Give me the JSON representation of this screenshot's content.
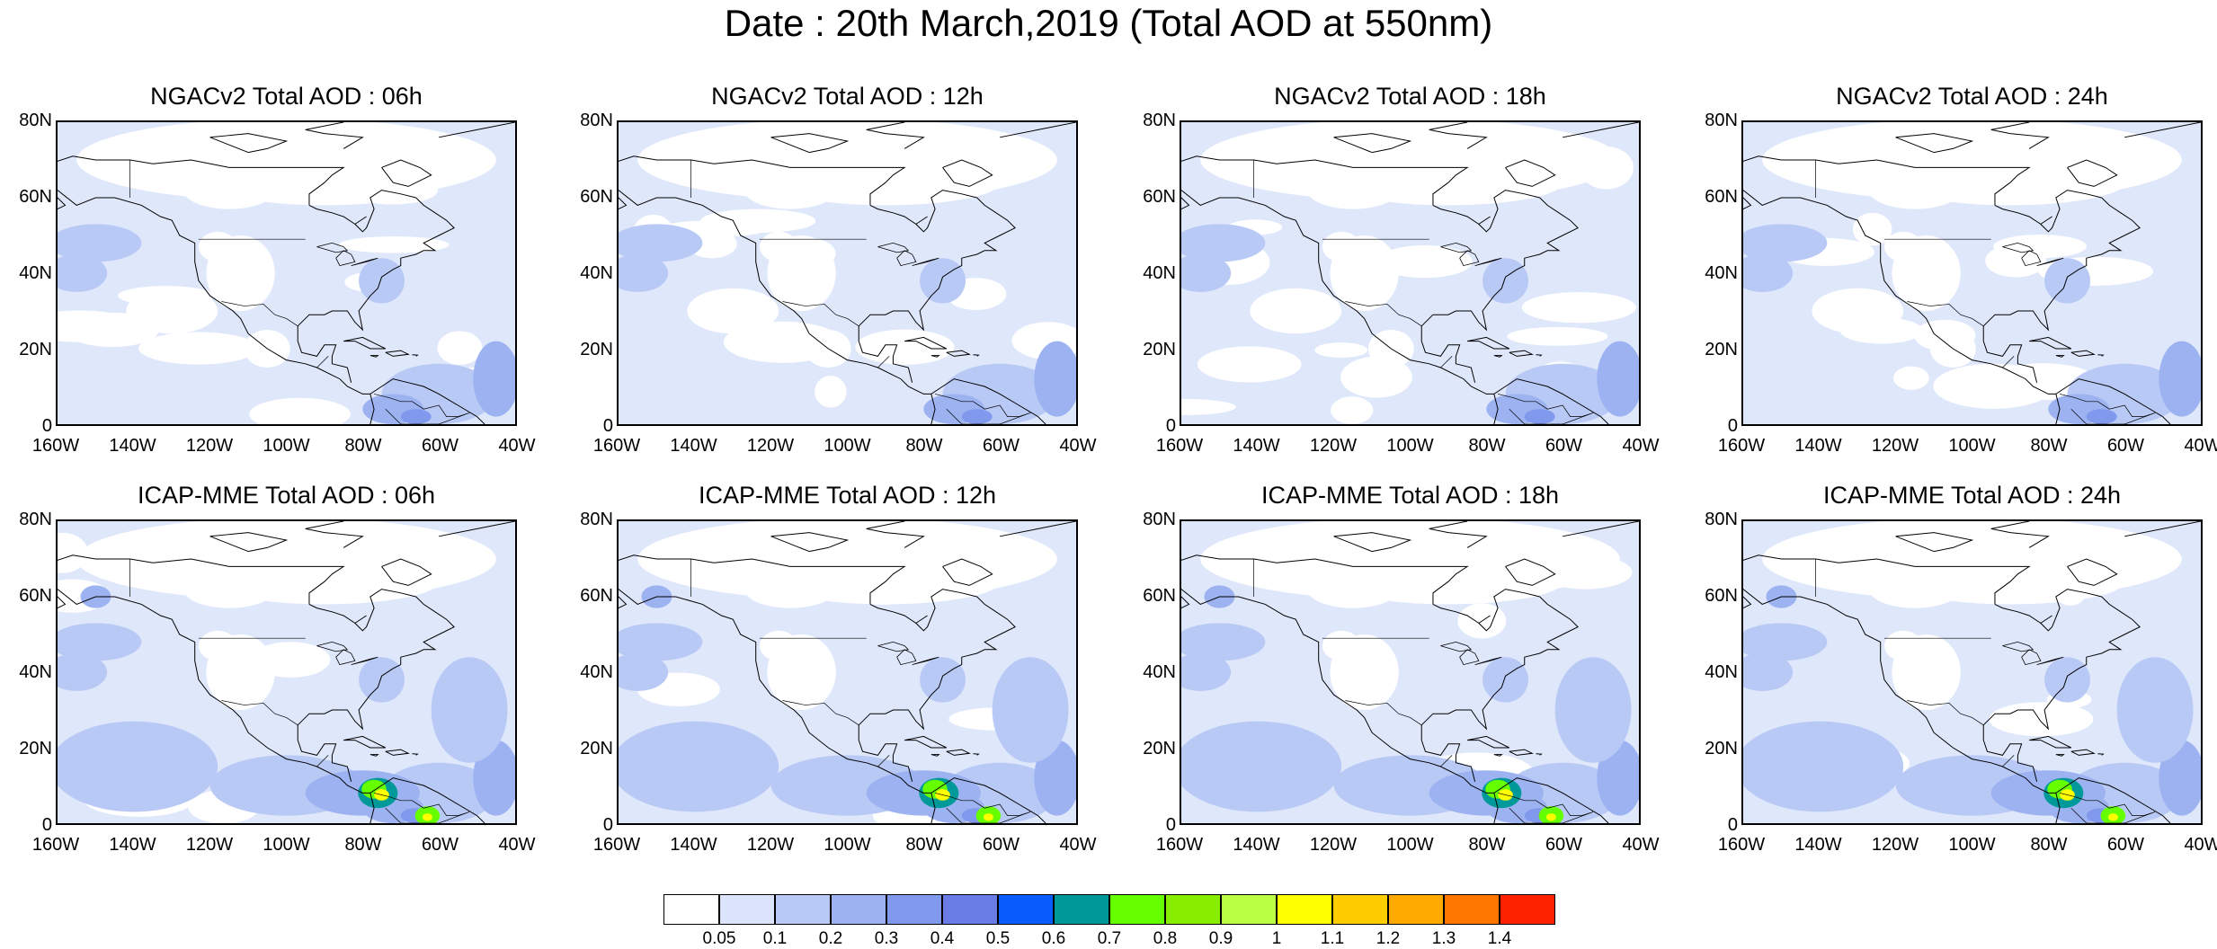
{
  "title": "Date : 20th March,2019 (Total AOD at 550nm)",
  "panels": [
    {
      "title": "NGACv2 Total AOD : 06h",
      "model": "NGACv2",
      "hour": "06h",
      "dust_plume": false
    },
    {
      "title": "NGACv2 Total AOD : 12h",
      "model": "NGACv2",
      "hour": "12h",
      "dust_plume": false
    },
    {
      "title": "NGACv2 Total AOD : 18h",
      "model": "NGACv2",
      "hour": "18h",
      "dust_plume": false
    },
    {
      "title": "NGACv2 Total AOD : 24h",
      "model": "NGACv2",
      "hour": "24h",
      "dust_plume": false
    },
    {
      "title": "ICAP-MME Total AOD : 06h",
      "model": "ICAP-MME",
      "hour": "06h",
      "dust_plume": true
    },
    {
      "title": "ICAP-MME Total AOD : 12h",
      "model": "ICAP-MME",
      "hour": "12h",
      "dust_plume": true
    },
    {
      "title": "ICAP-MME Total AOD : 18h",
      "model": "ICAP-MME",
      "hour": "18h",
      "dust_plume": true
    },
    {
      "title": "ICAP-MME Total AOD : 24h",
      "model": "ICAP-MME",
      "hour": "24h",
      "dust_plume": true
    }
  ],
  "lat_labels": [
    "80N",
    "60N",
    "40N",
    "20N",
    "0"
  ],
  "lon_labels": [
    "160W",
    "140W",
    "120W",
    "100W",
    "80W",
    "60W",
    "40W"
  ],
  "colorbar": {
    "labels": [
      "0.05",
      "0.1",
      "0.2",
      "0.3",
      "0.4",
      "0.5",
      "0.6",
      "0.7",
      "0.8",
      "0.9",
      "1",
      "1.1",
      "1.2",
      "1.3",
      "1.4"
    ],
    "colors": [
      "#ffffff",
      "#dce4fb",
      "#b9c9f5",
      "#9cb2f1",
      "#8199ec",
      "#6a7de6",
      "#0a5cff",
      "#009999",
      "#66ff00",
      "#88ee00",
      "#bbff44",
      "#ffff00",
      "#ffcc00",
      "#ffaa00",
      "#ff7700",
      "#ff2200"
    ]
  },
  "map_colors": {
    "ocean_base": "#dfe7fb",
    "light": "#ffffff",
    "medium": "#b9c9f5",
    "darker": "#9cb2f1",
    "darkest": "#8199ec",
    "land_line": "#000000"
  }
}
